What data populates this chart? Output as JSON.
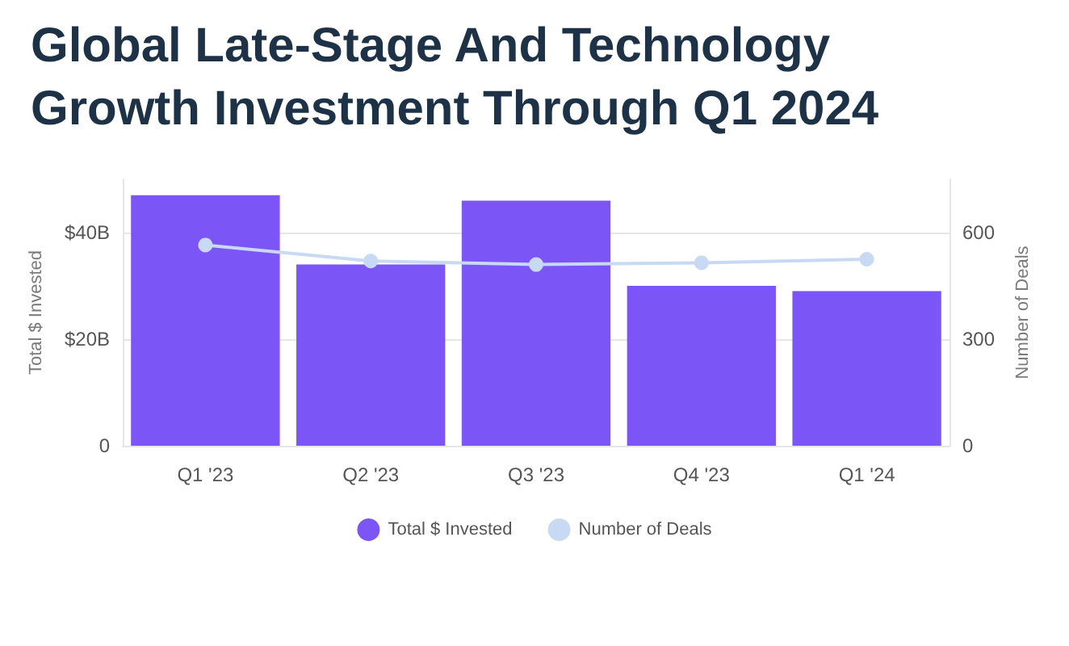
{
  "chart_data": {
    "type": "bar",
    "title": "Global Late-Stage And Technology Growth Investment Through Q1 2024",
    "categories": [
      "Q1 '23",
      "Q2 '23",
      "Q3 '23",
      "Q4 '23",
      "Q1 '24"
    ],
    "series": [
      {
        "name": "Total $ Invested",
        "color": "#7c55f6",
        "values": [
          47,
          34,
          46,
          30,
          29
        ]
      },
      {
        "name": "Number of Deals",
        "type": "line",
        "axis": "y2",
        "color": "#c8d9f4",
        "values": [
          565,
          520,
          510,
          515,
          525
        ]
      }
    ],
    "ylabel": "Total $ Invested",
    "y2label": "Number of Deals",
    "ylim": [
      0,
      50
    ],
    "yticks": [
      0,
      {
        "value": 20,
        "label": "$20B"
      },
      {
        "value": 40,
        "label": "$40B"
      }
    ],
    "y2lim": [
      0,
      750
    ],
    "y2ticks": [
      0,
      300,
      600
    ],
    "grid": "y",
    "legend": "bottom",
    "marker": "circle"
  }
}
